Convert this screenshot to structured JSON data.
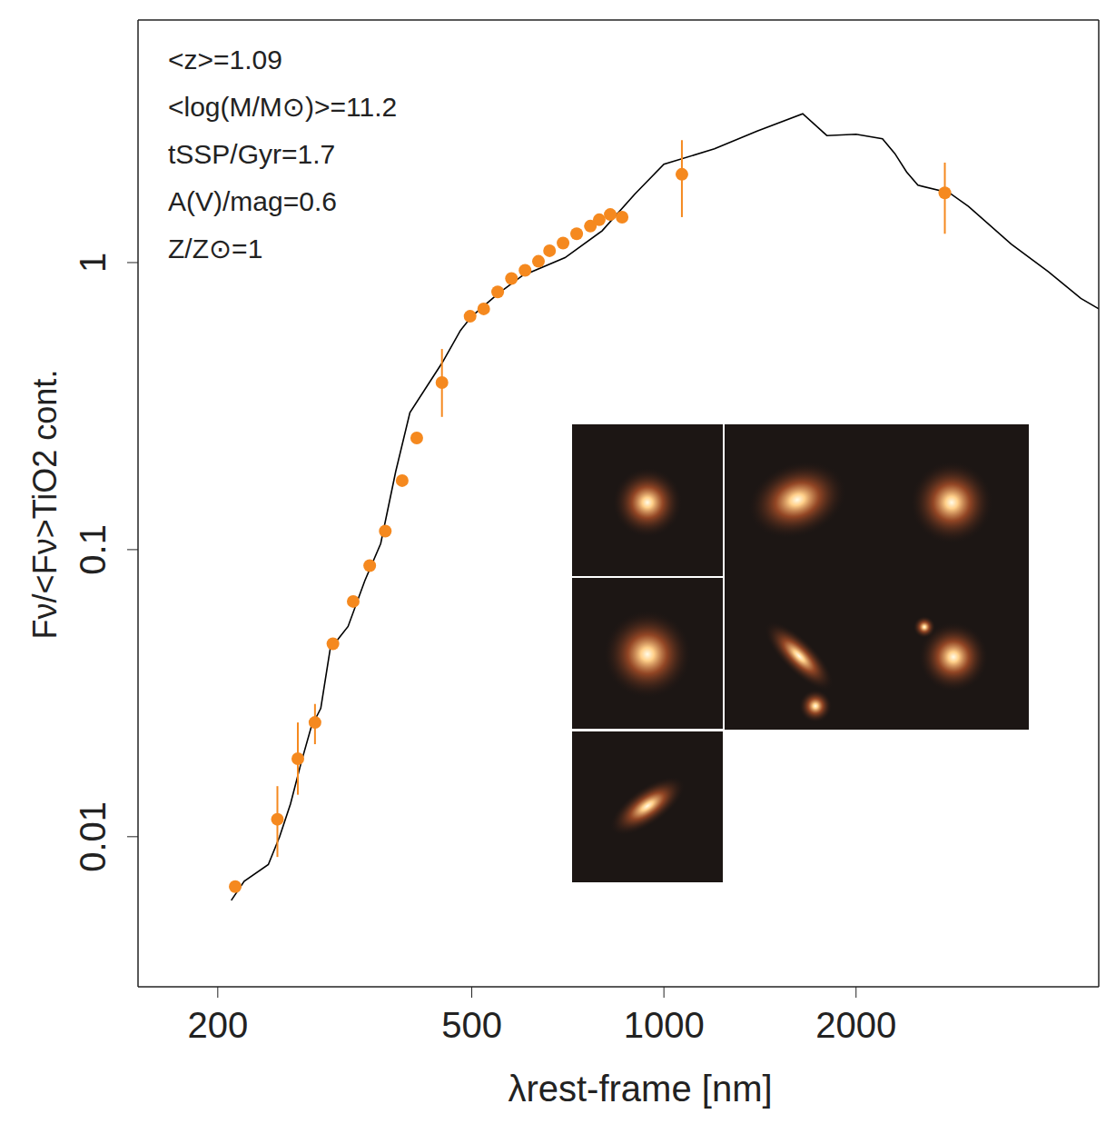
{
  "chart_data": {
    "type": "line",
    "x_label": "λrest-frame [nm]",
    "y_label": "Fν/<Fν>TiO2 cont.",
    "annotations": [
      "<z>=1.09",
      "<log(M/M⊙)>=11.2",
      "tSSP/Gyr=1.7",
      "A(V)/mag=0.6",
      "Z/Z⊙=1"
    ],
    "log": true,
    "xlim": [
      150,
      4800
    ],
    "ylim": [
      0.003,
      7
    ],
    "xticks": [
      200,
      500,
      1000,
      2000
    ],
    "yticks": [
      0.01,
      0.1,
      1
    ],
    "series": [
      {
        "type": "line",
        "color": "#000000",
        "line_style": "solid",
        "x": [
          210,
          220,
          240,
          250,
          260,
          270,
          280,
          290,
          300,
          320,
          340,
          360,
          380,
          400,
          450,
          480,
          500,
          550,
          600,
          700,
          800,
          900,
          1000,
          1200,
          1400,
          1650,
          1800,
          2000,
          2200,
          2300,
          2400,
          2500,
          2800,
          3000,
          3500,
          4000,
          4500,
          4800
        ],
        "values": [
          0.006,
          0.007,
          0.008,
          0.01,
          0.013,
          0.018,
          0.024,
          0.028,
          0.045,
          0.054,
          0.078,
          0.105,
          0.187,
          0.3,
          0.45,
          0.58,
          0.65,
          0.78,
          0.9,
          1.04,
          1.29,
          1.73,
          2.2,
          2.49,
          2.87,
          3.3,
          2.77,
          2.8,
          2.7,
          2.4,
          2.07,
          1.86,
          1.75,
          1.57,
          1.16,
          0.93,
          0.75,
          0.69
        ]
      },
      {
        "type": "scatter",
        "color": "#f5891f",
        "marker": "circle",
        "x": [
          213,
          248,
          267,
          284,
          303,
          326,
          346,
          366,
          389,
          410,
          449,
          497,
          522,
          549,
          577,
          606,
          636,
          662,
          695,
          730,
          767,
          792,
          824,
          860,
          1067,
          2755
        ],
        "values": [
          0.0067,
          0.0115,
          0.0187,
          0.025,
          0.047,
          0.066,
          0.088,
          0.116,
          0.174,
          0.245,
          0.382,
          0.65,
          0.69,
          0.79,
          0.88,
          0.94,
          1.01,
          1.1,
          1.17,
          1.26,
          1.34,
          1.41,
          1.47,
          1.44,
          2.03,
          1.75
        ],
        "error_bars": [
          null,
          [
            0.0085,
            0.015
          ],
          [
            0.014,
            0.025
          ],
          [
            0.021,
            0.029
          ],
          null,
          null,
          null,
          null,
          null,
          null,
          [
            0.29,
            0.5
          ],
          null,
          null,
          null,
          null,
          null,
          null,
          null,
          null,
          null,
          null,
          null,
          null,
          null,
          [
            1.44,
            2.67
          ],
          [
            1.26,
            2.23
          ]
        ]
      }
    ]
  }
}
